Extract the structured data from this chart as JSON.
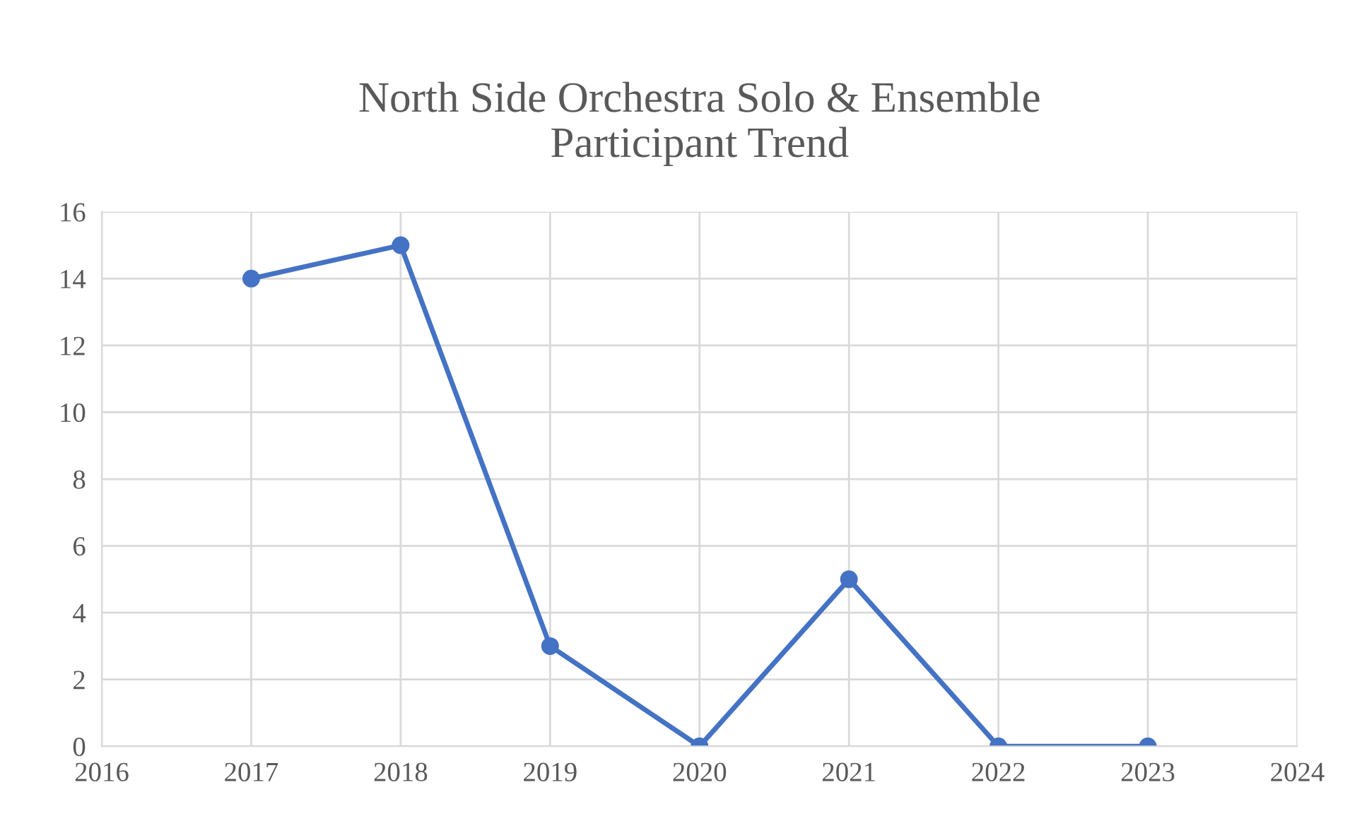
{
  "chart_data": {
    "type": "line",
    "title": "North Side Orchestra Solo & Ensemble\nParticipant Trend",
    "x": [
      2017,
      2018,
      2019,
      2020,
      2021,
      2022,
      2023
    ],
    "series": [
      {
        "color": "#4472c4",
        "values": [
          14,
          15,
          3,
          0,
          5,
          0,
          0
        ]
      }
    ],
    "xlim": [
      2016,
      2024
    ],
    "xticks": [
      2016,
      2017,
      2018,
      2019,
      2020,
      2021,
      2022,
      2023,
      2024
    ],
    "ylim": [
      0,
      16
    ],
    "yticks": [
      0,
      2,
      4,
      6,
      8,
      10,
      12,
      14,
      16
    ],
    "grid": true,
    "marker": "circle",
    "line_style": "solid",
    "legend": false
  }
}
